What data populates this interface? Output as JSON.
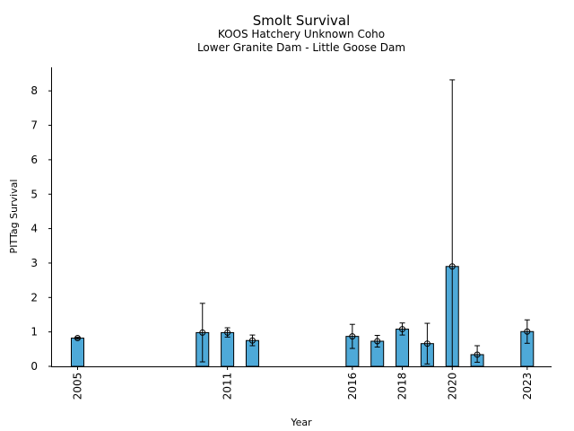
{
  "chart_data": {
    "type": "bar",
    "title": "Smolt Survival",
    "subtitle_1": "KOOS Hatchery Unknown Coho",
    "subtitle_2": "Lower Granite Dam - Little Goose Dam",
    "xlabel": "Year",
    "ylabel": "PITTag Survival",
    "xlim": [
      2004,
      2024
    ],
    "ylim": [
      0,
      8.7
    ],
    "y_ticks": [
      0,
      1,
      2,
      3,
      4,
      5,
      6,
      7,
      8
    ],
    "x_ticks": [
      2005,
      2011,
      2016,
      2018,
      2020,
      2023
    ],
    "bar_color": "#4ea9d8",
    "grid": false,
    "points": [
      {
        "year": 2005,
        "value": 0.82,
        "lower": 0.79,
        "upper": 0.85
      },
      {
        "year": 2010,
        "value": 0.98,
        "lower": 0.13,
        "upper": 1.83
      },
      {
        "year": 2011,
        "value": 0.98,
        "lower": 0.85,
        "upper": 1.12
      },
      {
        "year": 2012,
        "value": 0.75,
        "lower": 0.6,
        "upper": 0.91
      },
      {
        "year": 2016,
        "value": 0.87,
        "lower": 0.52,
        "upper": 1.22
      },
      {
        "year": 2017,
        "value": 0.73,
        "lower": 0.56,
        "upper": 0.9
      },
      {
        "year": 2018,
        "value": 1.08,
        "lower": 0.91,
        "upper": 1.26
      },
      {
        "year": 2019,
        "value": 0.66,
        "lower": 0.07,
        "upper": 1.25
      },
      {
        "year": 2020,
        "value": 2.9,
        "lower": 0.0,
        "upper": 8.32
      },
      {
        "year": 2021,
        "value": 0.34,
        "lower": 0.12,
        "upper": 0.6
      },
      {
        "year": 2023,
        "value": 1.01,
        "lower": 0.67,
        "upper": 1.35
      }
    ]
  }
}
